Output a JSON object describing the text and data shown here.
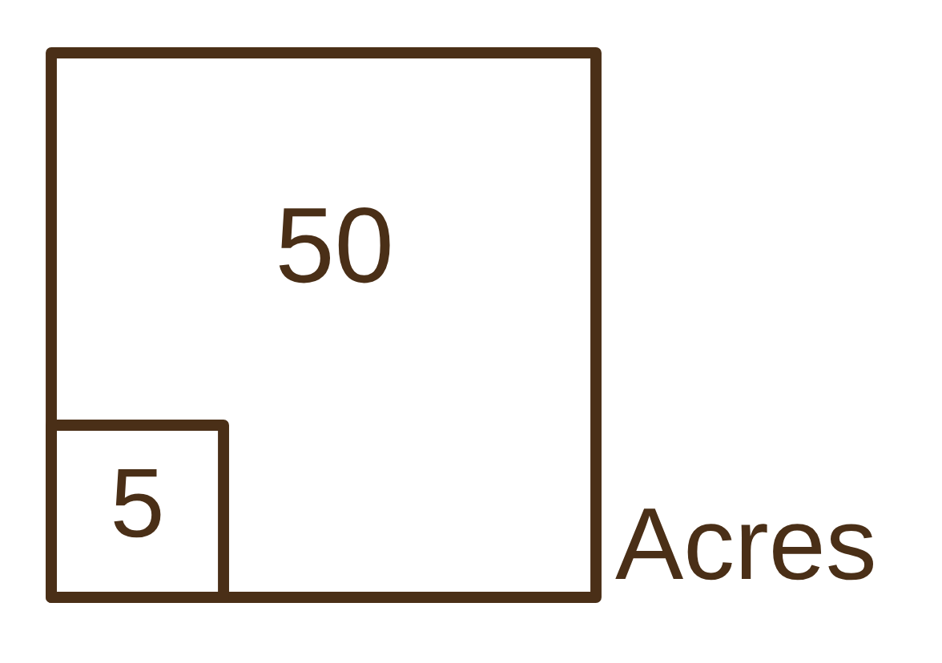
{
  "chart_data": {
    "type": "other",
    "values": [
      50,
      5
    ],
    "value_labels": [
      "50",
      "5"
    ],
    "color": "#4a2f17",
    "annotations": [
      "Acres"
    ]
  }
}
